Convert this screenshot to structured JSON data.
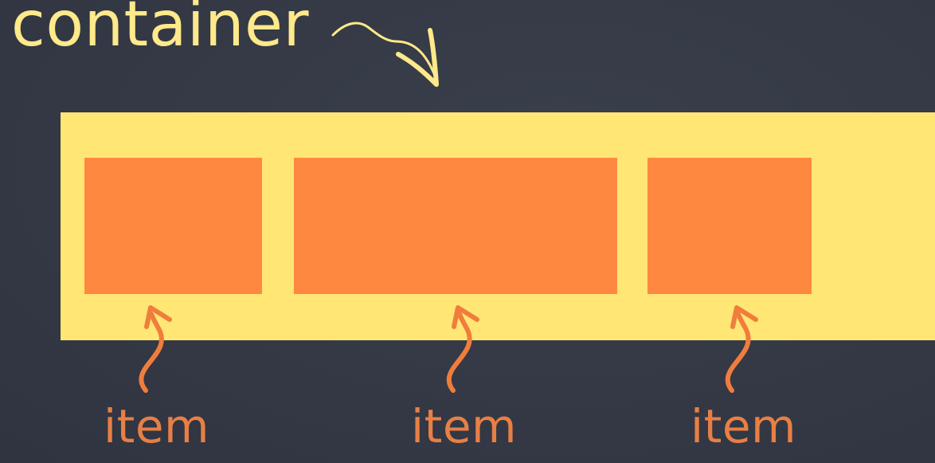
{
  "labels": {
    "container": "container",
    "items": [
      "item",
      "item",
      "item"
    ]
  },
  "colors": {
    "background": "#353a46",
    "container_fill": "#ffe675",
    "container_text": "#ffe98a",
    "item_fill": "#ff8840",
    "item_text": "#e87f45",
    "container_arrow": "#ffe98a",
    "item_arrow": "#f07d3c"
  },
  "icons": {
    "container_pointer": "curved-arrow-icon",
    "item_pointer": "squiggle-arrow-icon"
  }
}
